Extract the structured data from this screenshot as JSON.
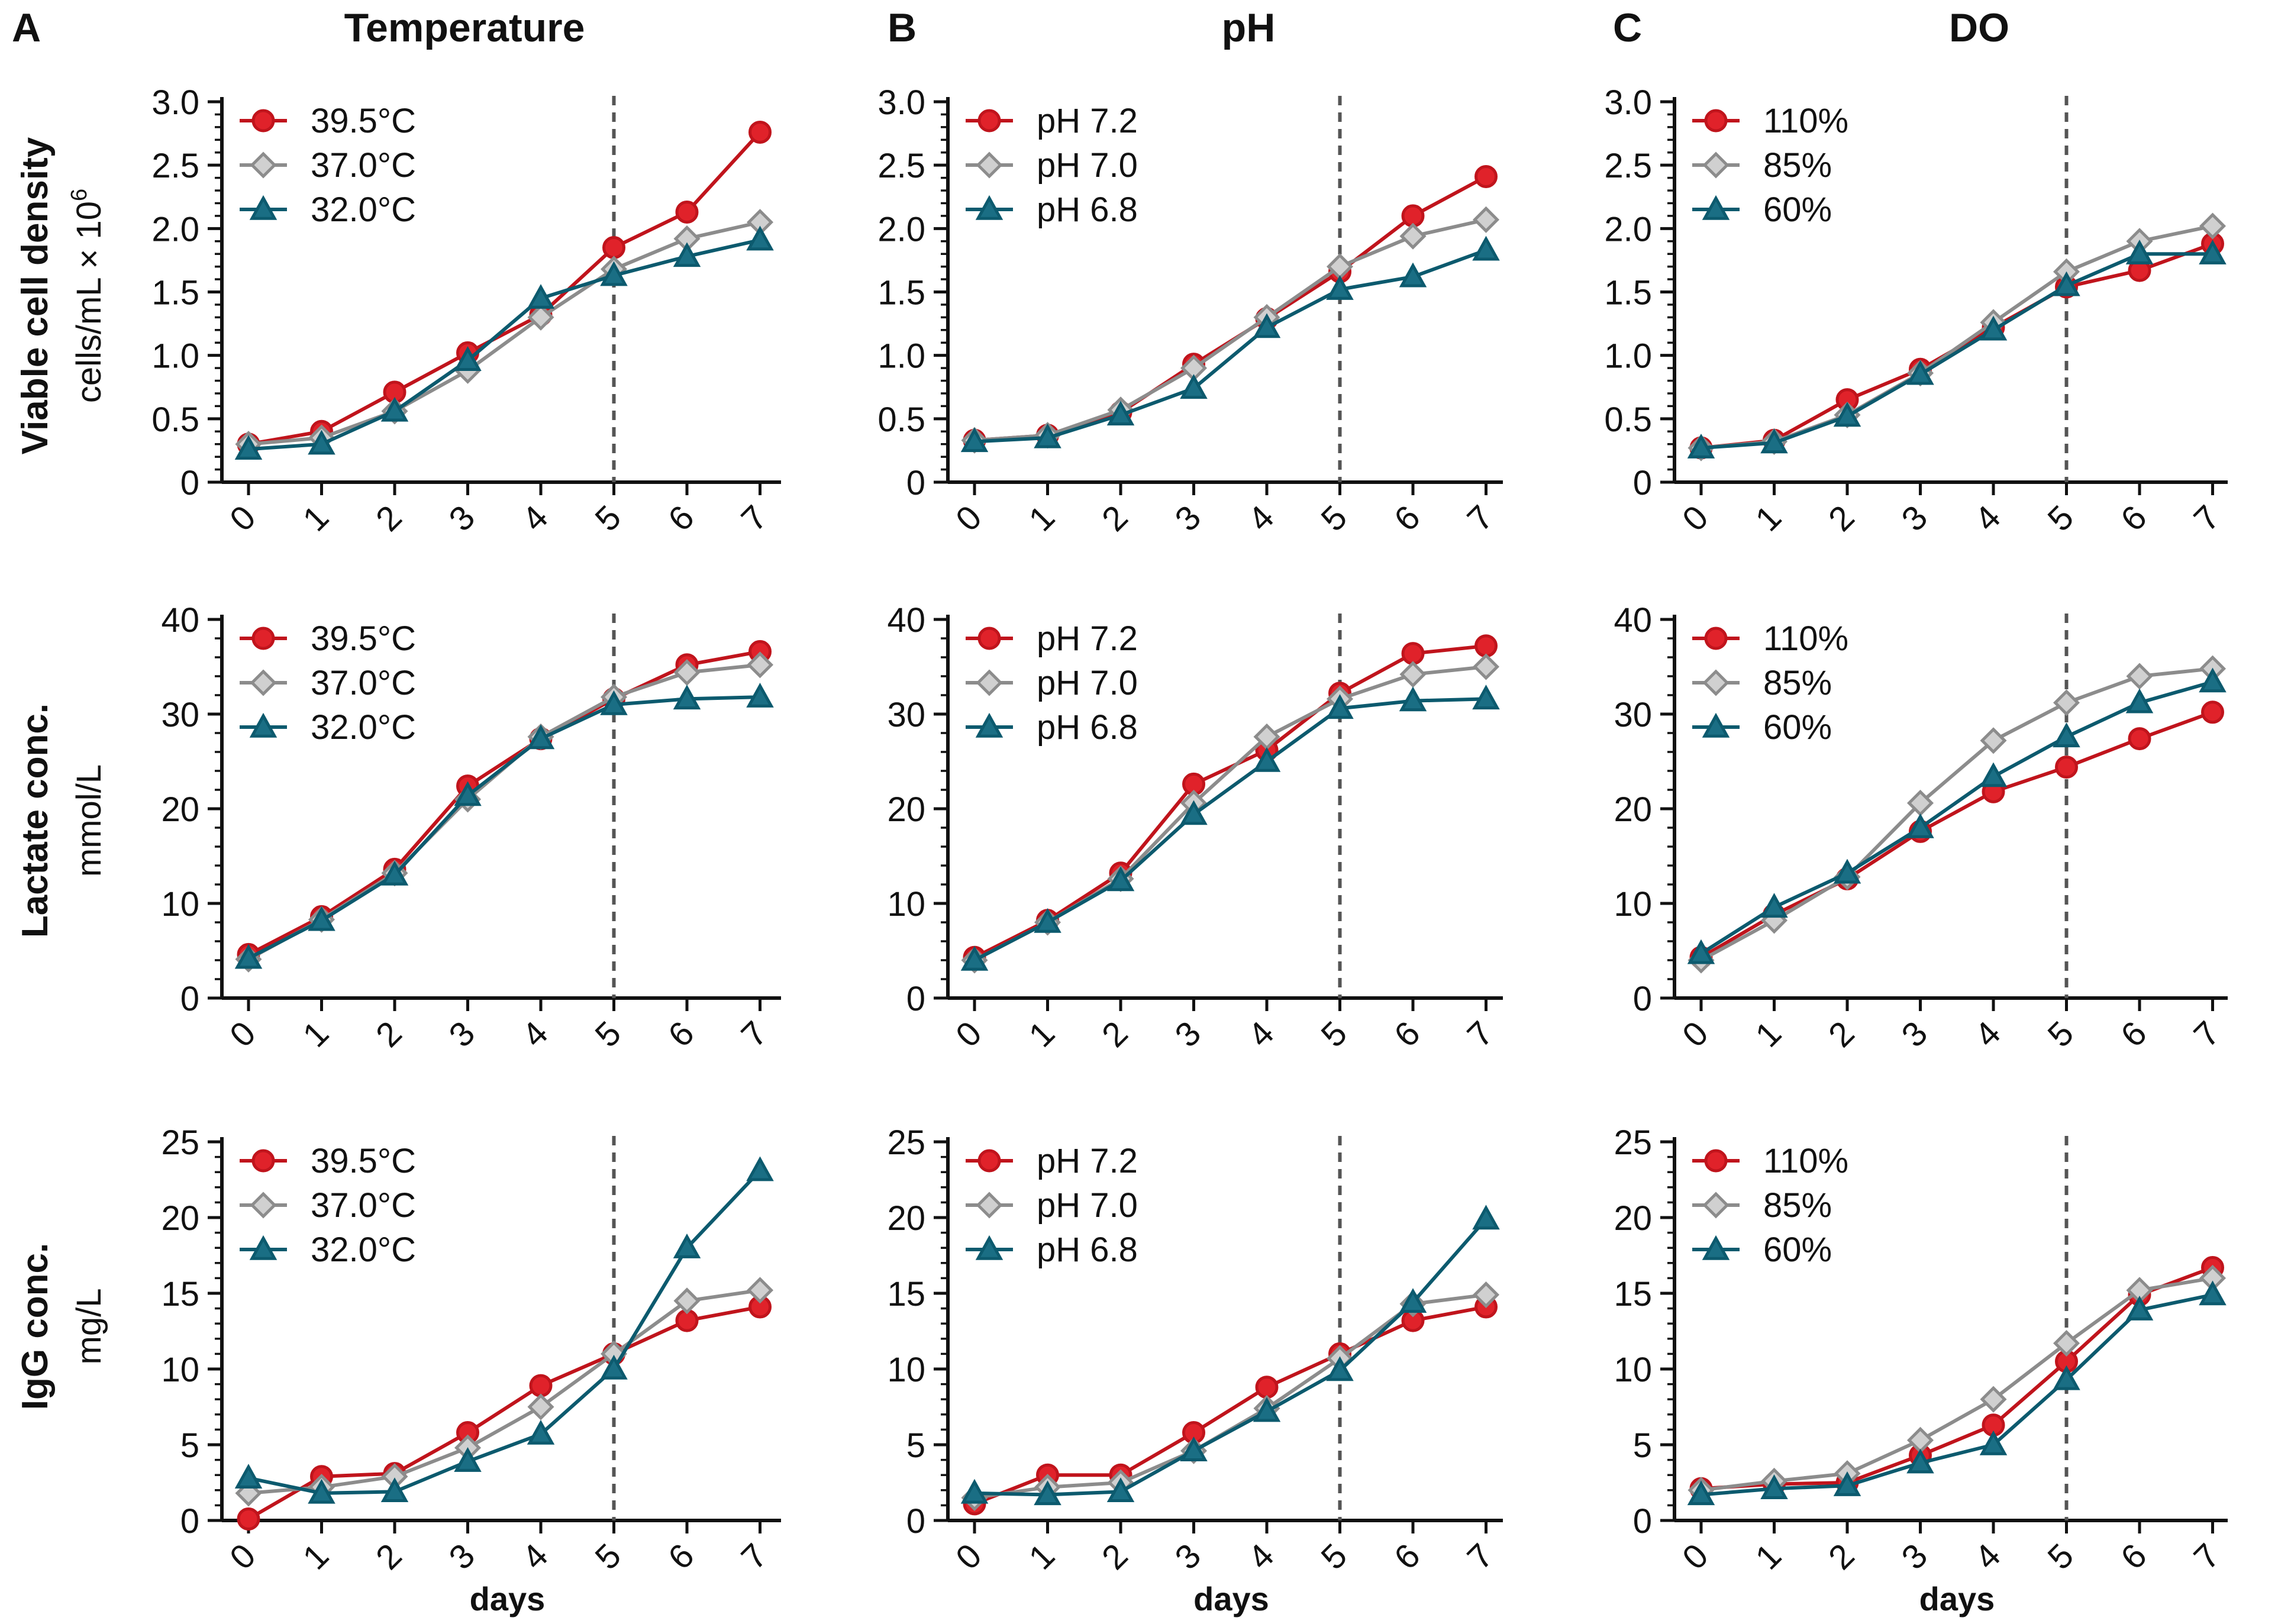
{
  "panel_letters": [
    "A",
    "B",
    "C"
  ],
  "column_titles": [
    "Temperature",
    "pH",
    "DO"
  ],
  "row_labels": [
    {
      "bold": "Viable cell density",
      "unit": "cells/mL × 10",
      "unit_sup": "6"
    },
    {
      "bold": "Lactate conc.",
      "unit": "mmol/L",
      "unit_sup": ""
    },
    {
      "bold": "IgG conc.",
      "unit": "mg/L",
      "unit_sup": ""
    }
  ],
  "xlabel": "days",
  "colors": {
    "red": "#c0141c",
    "gray": "#8c8c8c",
    "teal": "#0c5a6e",
    "fill_red": "#e0222a",
    "fill_gray": "#d0d0d0",
    "fill_teal": "#1a6e84"
  },
  "chart_data": [
    {
      "type": "line",
      "row": 0,
      "col": 0,
      "title": "Temperature",
      "ylabel": "Viable cell density",
      "ylim": [
        0,
        3.0
      ],
      "yticks": [
        0,
        0.5,
        1.0,
        1.5,
        2.0,
        2.5,
        3.0
      ],
      "ytick_labels": [
        "0",
        "0.5",
        "1.0",
        "1.5",
        "2.0",
        "2.5",
        "3.0"
      ],
      "x": [
        0,
        1,
        2,
        3,
        4,
        5,
        6,
        7
      ],
      "xtick_labels": [
        "0",
        "1",
        "2",
        "3",
        "4",
        "5",
        "6",
        "7"
      ],
      "vline": 5,
      "xlabel": "",
      "series": [
        {
          "name": "39.5°C",
          "marker": "circle",
          "color": "red",
          "values": [
            0.3,
            0.4,
            0.71,
            1.02,
            1.32,
            1.85,
            2.13,
            2.76
          ]
        },
        {
          "name": "37.0°C",
          "marker": "diamond",
          "color": "gray",
          "values": [
            0.3,
            0.35,
            0.56,
            0.88,
            1.3,
            1.68,
            1.92,
            2.05
          ]
        },
        {
          "name": "32.0°C",
          "marker": "triangle",
          "color": "teal",
          "values": [
            0.26,
            0.3,
            0.56,
            0.96,
            1.45,
            1.63,
            1.78,
            1.91
          ]
        }
      ]
    },
    {
      "type": "line",
      "row": 0,
      "col": 1,
      "title": "pH",
      "ylabel": "Viable cell density",
      "ylim": [
        0,
        3.0
      ],
      "yticks": [
        0,
        0.5,
        1.0,
        1.5,
        2.0,
        2.5,
        3.0
      ],
      "ytick_labels": [
        "0",
        "0.5",
        "1.0",
        "1.5",
        "2.0",
        "2.5",
        "3.0"
      ],
      "x": [
        0,
        1,
        2,
        3,
        4,
        5,
        6,
        7
      ],
      "xtick_labels": [
        "0",
        "1",
        "2",
        "3",
        "4",
        "5",
        "6",
        "7"
      ],
      "vline": 5,
      "xlabel": "",
      "series": [
        {
          "name": "pH 7.2",
          "marker": "circle",
          "color": "red",
          "values": [
            0.33,
            0.37,
            0.55,
            0.93,
            1.29,
            1.66,
            2.1,
            2.41
          ]
        },
        {
          "name": "pH 7.0",
          "marker": "diamond",
          "color": "gray",
          "values": [
            0.33,
            0.37,
            0.57,
            0.9,
            1.3,
            1.7,
            1.94,
            2.07
          ]
        },
        {
          "name": "pH 6.8",
          "marker": "triangle",
          "color": "teal",
          "values": [
            0.32,
            0.35,
            0.53,
            0.74,
            1.22,
            1.52,
            1.62,
            1.83
          ]
        }
      ]
    },
    {
      "type": "line",
      "row": 0,
      "col": 2,
      "title": "DO",
      "ylabel": "Viable cell density",
      "ylim": [
        0,
        3.0
      ],
      "yticks": [
        0,
        0.5,
        1.0,
        1.5,
        2.0,
        2.5,
        3.0
      ],
      "ytick_labels": [
        "0",
        "0.5",
        "1.0",
        "1.5",
        "2.0",
        "2.5",
        "3.0"
      ],
      "x": [
        0,
        1,
        2,
        3,
        4,
        5,
        6,
        7
      ],
      "xtick_labels": [
        "0",
        "1",
        "2",
        "3",
        "4",
        "5",
        "6",
        "7"
      ],
      "vline": 5,
      "xlabel": "",
      "series": [
        {
          "name": "110%",
          "marker": "circle",
          "color": "red",
          "values": [
            0.27,
            0.33,
            0.65,
            0.89,
            1.22,
            1.54,
            1.67,
            1.88
          ]
        },
        {
          "name": "85%",
          "marker": "diamond",
          "color": "gray",
          "values": [
            0.27,
            0.32,
            0.53,
            0.86,
            1.26,
            1.66,
            1.9,
            2.02
          ]
        },
        {
          "name": "60%",
          "marker": "triangle",
          "color": "teal",
          "values": [
            0.27,
            0.31,
            0.52,
            0.85,
            1.2,
            1.55,
            1.8,
            1.8
          ]
        }
      ]
    },
    {
      "type": "line",
      "row": 1,
      "col": 0,
      "title": "Temperature",
      "ylabel": "Lactate conc.",
      "ylim": [
        0,
        40
      ],
      "yticks": [
        0,
        10,
        20,
        30,
        40
      ],
      "ytick_labels": [
        "0",
        "10",
        "20",
        "30",
        "40"
      ],
      "x": [
        0,
        1,
        2,
        3,
        4,
        5,
        6,
        7
      ],
      "xtick_labels": [
        "0",
        "1",
        "2",
        "3",
        "4",
        "5",
        "6",
        "7"
      ],
      "vline": 5,
      "xlabel": "",
      "series": [
        {
          "name": "39.5°C",
          "marker": "circle",
          "color": "red",
          "values": [
            4.6,
            8.6,
            13.6,
            22.4,
            27.4,
            31.6,
            35.2,
            36.6
          ]
        },
        {
          "name": "37.0°C",
          "marker": "diamond",
          "color": "gray",
          "values": [
            4.1,
            8.3,
            13.2,
            21.0,
            27.6,
            31.8,
            34.4,
            35.2
          ]
        },
        {
          "name": "32.0°C",
          "marker": "triangle",
          "color": "teal",
          "values": [
            4.2,
            8.2,
            13.0,
            21.4,
            27.4,
            31.0,
            31.6,
            31.8
          ]
        }
      ]
    },
    {
      "type": "line",
      "row": 1,
      "col": 1,
      "title": "pH",
      "ylabel": "Lactate conc.",
      "ylim": [
        0,
        40
      ],
      "yticks": [
        0,
        10,
        20,
        30,
        40
      ],
      "ytick_labels": [
        "0",
        "10",
        "20",
        "30",
        "40"
      ],
      "x": [
        0,
        1,
        2,
        3,
        4,
        5,
        6,
        7
      ],
      "xtick_labels": [
        "0",
        "1",
        "2",
        "3",
        "4",
        "5",
        "6",
        "7"
      ],
      "vline": 5,
      "xlabel": "",
      "series": [
        {
          "name": "pH 7.2",
          "marker": "circle",
          "color": "red",
          "values": [
            4.3,
            8.2,
            13.2,
            22.6,
            26.2,
            32.2,
            36.4,
            37.2
          ]
        },
        {
          "name": "pH 7.0",
          "marker": "diamond",
          "color": "gray",
          "values": [
            4.0,
            8.0,
            12.6,
            20.6,
            27.6,
            31.6,
            34.2,
            35.0
          ]
        },
        {
          "name": "pH 6.8",
          "marker": "triangle",
          "color": "teal",
          "values": [
            4.0,
            8.0,
            12.4,
            19.4,
            25.0,
            30.6,
            31.4,
            31.6
          ]
        }
      ]
    },
    {
      "type": "line",
      "row": 1,
      "col": 2,
      "title": "DO",
      "ylabel": "Lactate conc.",
      "ylim": [
        0,
        40
      ],
      "yticks": [
        0,
        10,
        20,
        30,
        40
      ],
      "ytick_labels": [
        "0",
        "10",
        "20",
        "30",
        "40"
      ],
      "x": [
        0,
        1,
        2,
        3,
        4,
        5,
        6,
        7
      ],
      "xtick_labels": [
        "0",
        "1",
        "2",
        "3",
        "4",
        "5",
        "6",
        "7"
      ],
      "vline": 5,
      "xlabel": "",
      "series": [
        {
          "name": "110%",
          "marker": "circle",
          "color": "red",
          "values": [
            4.3,
            8.8,
            12.6,
            17.6,
            21.8,
            24.4,
            27.4,
            30.2
          ]
        },
        {
          "name": "85%",
          "marker": "diamond",
          "color": "gray",
          "values": [
            4.0,
            8.2,
            12.8,
            20.6,
            27.2,
            31.2,
            34.0,
            34.8
          ]
        },
        {
          "name": "60%",
          "marker": "triangle",
          "color": "teal",
          "values": [
            4.7,
            9.6,
            13.2,
            18.0,
            23.4,
            27.6,
            31.2,
            33.4
          ]
        }
      ]
    },
    {
      "type": "line",
      "row": 2,
      "col": 0,
      "title": "Temperature",
      "ylabel": "IgG conc.",
      "ylim": [
        0,
        25
      ],
      "yticks": [
        0,
        5,
        10,
        15,
        20,
        25
      ],
      "ytick_labels": [
        "0",
        "5",
        "10",
        "15",
        "20",
        "25"
      ],
      "x": [
        0,
        1,
        2,
        3,
        4,
        5,
        6,
        7
      ],
      "xtick_labels": [
        "0",
        "1",
        "2",
        "3",
        "4",
        "5",
        "6",
        "7"
      ],
      "vline": 5,
      "xlabel": "days",
      "series": [
        {
          "name": "39.5°C",
          "marker": "circle",
          "color": "red",
          "values": [
            0.1,
            2.9,
            3.1,
            5.8,
            8.9,
            11.0,
            13.2,
            14.1
          ]
        },
        {
          "name": "37.0°C",
          "marker": "diamond",
          "color": "gray",
          "values": [
            1.8,
            2.2,
            2.9,
            4.8,
            7.5,
            11.0,
            14.5,
            15.2
          ]
        },
        {
          "name": "32.0°C",
          "marker": "triangle",
          "color": "teal",
          "values": [
            2.8,
            1.8,
            1.9,
            3.9,
            5.7,
            10.0,
            18.0,
            23.1
          ]
        }
      ]
    },
    {
      "type": "line",
      "row": 2,
      "col": 1,
      "title": "pH",
      "ylabel": "IgG conc.",
      "ylim": [
        0,
        25
      ],
      "yticks": [
        0,
        5,
        10,
        15,
        20,
        25
      ],
      "ytick_labels": [
        "0",
        "5",
        "10",
        "15",
        "20",
        "25"
      ],
      "x": [
        0,
        1,
        2,
        3,
        4,
        5,
        6,
        7
      ],
      "xtick_labels": [
        "0",
        "1",
        "2",
        "3",
        "4",
        "5",
        "6",
        "7"
      ],
      "vline": 5,
      "xlabel": "days",
      "series": [
        {
          "name": "pH 7.2",
          "marker": "circle",
          "color": "red",
          "values": [
            1.1,
            3.0,
            3.0,
            5.8,
            8.8,
            11.0,
            13.2,
            14.1
          ]
        },
        {
          "name": "pH 7.0",
          "marker": "diamond",
          "color": "gray",
          "values": [
            1.5,
            2.2,
            2.5,
            4.6,
            7.4,
            10.7,
            14.3,
            14.9
          ]
        },
        {
          "name": "pH 6.8",
          "marker": "triangle",
          "color": "teal",
          "values": [
            1.8,
            1.7,
            1.9,
            4.6,
            7.2,
            9.9,
            14.4,
            19.9
          ]
        }
      ]
    },
    {
      "type": "line",
      "row": 2,
      "col": 2,
      "title": "DO",
      "ylabel": "IgG conc.",
      "ylim": [
        0,
        25
      ],
      "yticks": [
        0,
        5,
        10,
        15,
        20,
        25
      ],
      "ytick_labels": [
        "0",
        "5",
        "10",
        "15",
        "20",
        "25"
      ],
      "x": [
        0,
        1,
        2,
        3,
        4,
        5,
        6,
        7
      ],
      "xtick_labels": [
        "0",
        "1",
        "2",
        "3",
        "4",
        "5",
        "6",
        "7"
      ],
      "vline": 5,
      "xlabel": "days",
      "series": [
        {
          "name": "110%",
          "marker": "circle",
          "color": "red",
          "values": [
            2.1,
            2.4,
            2.5,
            4.3,
            6.3,
            10.5,
            14.9,
            16.7
          ]
        },
        {
          "name": "85%",
          "marker": "diamond",
          "color": "gray",
          "values": [
            2.0,
            2.6,
            3.1,
            5.3,
            8.0,
            11.7,
            15.2,
            16.0
          ]
        },
        {
          "name": "60%",
          "marker": "triangle",
          "color": "teal",
          "values": [
            1.7,
            2.1,
            2.3,
            3.8,
            5.0,
            9.3,
            13.9,
            14.9
          ]
        }
      ]
    }
  ]
}
